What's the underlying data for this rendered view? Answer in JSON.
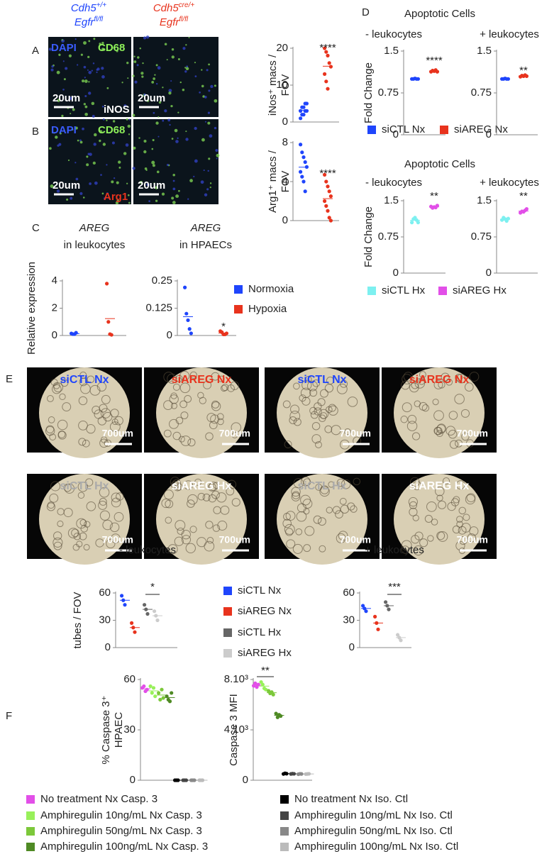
{
  "header": {
    "left": {
      "gene1": "Cdh5",
      "sup1": "+/+",
      "gene2": "Egfr",
      "sup2": "fl/fl"
    },
    "right": {
      "gene1": "Cdh5",
      "sup1": "cre/+",
      "gene2": "Egfr",
      "sup2": "fl/fl"
    }
  },
  "panel_labels": [
    "A",
    "B",
    "C",
    "D",
    "E",
    "F"
  ],
  "micrographs": [
    {
      "stain1": "DAPI",
      "stain2": "CD68",
      "scale_left": "20um",
      "marker": "iNOS",
      "scale_right": "20um"
    },
    {
      "stain1": "DAPI",
      "stain2": "CD68",
      "scale_left": "20um",
      "marker": "Arg1",
      "scale_right": "20um"
    }
  ],
  "wells": [
    {
      "label": "siCTL Nx",
      "scale": "700um"
    },
    {
      "label": "siAREG Nx",
      "scale": "700um"
    },
    {
      "label": "siCTL Nx",
      "scale": "700um"
    },
    {
      "label": "siAREG Nx",
      "scale": "700um"
    },
    {
      "label": "siCTL Hx",
      "scale": "700um"
    },
    {
      "label": "siAREG Hx",
      "scale": "700um"
    },
    {
      "label": "siCTL Hx",
      "scale": "700um"
    },
    {
      "label": "siAREG Hx",
      "scale": "700um"
    }
  ],
  "group_titles": [
    "Apoptotic Cells",
    "Apoptotic Cells"
  ],
  "legends": [
    {
      "items": [
        {
          "name": "Normoxia",
          "color": "#1f45fc"
        },
        {
          "name": "Hypoxia",
          "color": "#e8331d"
        }
      ]
    },
    {
      "items": [
        {
          "name": "siCTL Nx",
          "color": "#1f45fc"
        },
        {
          "name": "siAREG Nx",
          "color": "#e8331d"
        }
      ]
    },
    {
      "items": [
        {
          "name": "siCTL Hx",
          "color": "#7df0f0"
        },
        {
          "name": "siAREG Hx",
          "color": "#e24fe8"
        }
      ]
    },
    {
      "items": [
        {
          "name": "siCTL Nx",
          "color": "#1f45fc"
        },
        {
          "name": "siAREG Nx",
          "color": "#e8331d"
        },
        {
          "name": "siCTL Hx",
          "color": "#666666"
        },
        {
          "name": "siAREG Hx",
          "color": "#cccccc"
        }
      ]
    },
    {
      "items": [
        {
          "name": "No treatment Nx Casp. 3",
          "color": "#e24fe8"
        },
        {
          "name": "Amphiregulin 10ng/mL Nx Casp. 3",
          "color": "#98f05a"
        },
        {
          "name": "Amphiregulin 50ng/mL Nx Casp. 3",
          "color": "#7cc83a"
        },
        {
          "name": "Amphiregulin 100ng/mL Nx Casp. 3",
          "color": "#4f8a24"
        },
        {
          "name": "No treatment Nx Iso. Ctl",
          "color": "#000000"
        },
        {
          "name": "Amphiregulin 10ng/mL Nx Iso. Ctl",
          "color": "#444444"
        },
        {
          "name": "Amphiregulin 50ng/mL Nx Iso. Ctl",
          "color": "#888888"
        },
        {
          "name": "Amphiregulin 100ng/mL Nx Iso. Ctl",
          "color": "#bbbbbb"
        }
      ]
    }
  ],
  "chart_data": [
    {
      "type": "strip",
      "ylabel": [
        "iNos⁺ macs /",
        "FOV"
      ],
      "ylim": [
        0,
        20
      ],
      "yticks": [
        0,
        10,
        20
      ],
      "significance": "****",
      "series": [
        {
          "color": "#1f45fc",
          "values": [
            1,
            2,
            2,
            3,
            3,
            3,
            4,
            4,
            5,
            5
          ]
        },
        {
          "color": "#e8331d",
          "values": [
            20,
            19,
            18,
            16,
            15,
            13,
            11,
            9
          ]
        }
      ]
    },
    {
      "type": "strip",
      "ylabel": [
        "Arg1⁺ macs /",
        "FOV"
      ],
      "ylim": [
        0,
        8
      ],
      "yticks": [
        0,
        4,
        8
      ],
      "significance": "****",
      "series": [
        {
          "color": "#1f45fc",
          "values": [
            7.8,
            7,
            6.5,
            6,
            5.5,
            5,
            4.5,
            4,
            3
          ]
        },
        {
          "color": "#e8331d",
          "values": [
            4.7,
            4,
            3.5,
            3,
            2.5,
            2,
            1.5,
            1,
            0.3,
            0
          ]
        }
      ]
    },
    {
      "type": "strip",
      "title": [
        "AREG",
        "in leukocytes"
      ],
      "ylabel": [
        "Relative expression"
      ],
      "ylim": [
        0,
        4
      ],
      "yticks": [
        0,
        2,
        4
      ],
      "series": [
        {
          "color": "#1f45fc",
          "values": [
            0.15,
            0.1,
            0.1,
            0.2
          ]
        },
        {
          "color": "#e8331d",
          "values": [
            3.8,
            1,
            0.1,
            0.05
          ]
        }
      ]
    },
    {
      "type": "strip",
      "title": [
        "AREG",
        "in HPAECs"
      ],
      "ylim": [
        0,
        0.25
      ],
      "yticks": [
        0,
        0.125,
        0.25
      ],
      "significance": "*",
      "series": [
        {
          "color": "#1f45fc",
          "values": [
            0.22,
            0.1,
            0.07,
            0.03,
            0.01
          ]
        },
        {
          "color": "#e8331d",
          "values": [
            0.02,
            0.015,
            0.005,
            0.005,
            0.01
          ]
        }
      ]
    },
    {
      "type": "strip",
      "title": [
        "- leukocytes"
      ],
      "ylabel": [
        "Fold Change"
      ],
      "ylim": [
        0,
        1.5
      ],
      "yticks": [
        0,
        0.75,
        1.5
      ],
      "significance": "****",
      "series": [
        {
          "color": "#1f45fc",
          "values": [
            1,
            1,
            1.01,
            1,
            1
          ]
        },
        {
          "color": "#e8331d",
          "values": [
            1.13,
            1.15,
            1.14,
            1.16,
            1.13
          ]
        }
      ]
    },
    {
      "type": "strip",
      "title": [
        "+ leukocytes"
      ],
      "ylim": [
        0,
        1.5
      ],
      "yticks": [
        0,
        0.75,
        1.5
      ],
      "significance": "**",
      "series": [
        {
          "color": "#1f45fc",
          "values": [
            1,
            1,
            1.01,
            1,
            1
          ]
        },
        {
          "color": "#e8331d",
          "values": [
            1.04,
            1.06,
            1.05,
            1.07,
            1.05
          ]
        }
      ]
    },
    {
      "type": "strip",
      "title": [
        "- leukocytes"
      ],
      "ylabel": [
        "Fold Change"
      ],
      "ylim": [
        0,
        1.5
      ],
      "yticks": [
        0,
        0.75,
        1.5
      ],
      "significance": "**",
      "series": [
        {
          "color": "#7df0f0",
          "values": [
            1.05,
            1.12,
            1.15,
            1.1,
            1.05
          ]
        },
        {
          "color": "#e24fe8",
          "values": [
            1.38,
            1.35,
            1.37,
            1.36,
            1.4
          ]
        }
      ]
    },
    {
      "type": "strip",
      "title": [
        "+ leukocytes"
      ],
      "ylim": [
        0,
        1.5
      ],
      "yticks": [
        0,
        0.75,
        1.5
      ],
      "significance": "**",
      "series": [
        {
          "color": "#7df0f0",
          "values": [
            1.1,
            1.15,
            1.12,
            1.08,
            1.13
          ]
        },
        {
          "color": "#e24fe8",
          "values": [
            1.25,
            1.28,
            1.27,
            1.3,
            1.33
          ]
        }
      ]
    },
    {
      "type": "strip",
      "title": [
        "- leukocytes"
      ],
      "ylabel": [
        "tubes / FOV"
      ],
      "ylim": [
        0,
        60
      ],
      "yticks": [
        0,
        30,
        60
      ],
      "significance": "*",
      "series": [
        {
          "color": "#1f45fc",
          "values": [
            57,
            52,
            47
          ]
        },
        {
          "color": "#e8331d",
          "values": [
            27,
            22,
            17
          ]
        },
        {
          "color": "#666666",
          "values": [
            47,
            42,
            37
          ]
        },
        {
          "color": "#cccccc",
          "values": [
            40,
            35,
            30
          ]
        }
      ]
    },
    {
      "type": "strip",
      "title": [
        "+ leukocytes"
      ],
      "ylim": [
        0,
        60
      ],
      "yticks": [
        0,
        30,
        60
      ],
      "significance": "***",
      "series": [
        {
          "color": "#1f45fc",
          "values": [
            46,
            43,
            40
          ]
        },
        {
          "color": "#e8331d",
          "values": [
            34,
            27,
            20
          ]
        },
        {
          "color": "#666666",
          "values": [
            50,
            46,
            42
          ]
        },
        {
          "color": "#cccccc",
          "values": [
            14,
            11,
            8
          ]
        }
      ]
    },
    {
      "type": "strip",
      "ylabel": [
        "% Caspase 3⁺",
        "HPAEC"
      ],
      "ylim": [
        0,
        60
      ],
      "yticks": [
        0,
        30,
        60
      ],
      "series": [
        {
          "color": "#e24fe8",
          "values": [
            55,
            56,
            53,
            54
          ]
        },
        {
          "color": "#98f05a",
          "values": [
            56,
            52,
            55,
            50
          ]
        },
        {
          "color": "#7cc83a",
          "values": [
            52,
            48,
            54,
            49
          ]
        },
        {
          "color": "#4f8a24",
          "values": [
            50,
            48,
            47,
            52
          ]
        },
        {
          "color": "#000000",
          "values": [
            0,
            0,
            0
          ]
        },
        {
          "color": "#444444",
          "values": [
            0,
            0,
            0
          ]
        },
        {
          "color": "#888888",
          "values": [
            0,
            0,
            0
          ]
        },
        {
          "color": "#bbbbbb",
          "values": [
            0,
            0,
            0
          ]
        }
      ]
    },
    {
      "type": "strip",
      "ylabel": [
        "Caspase 3 MFI"
      ],
      "ylim": [
        0,
        8000
      ],
      "yticks": [
        0,
        {
          "value": 4000,
          "label": "4.10³"
        },
        {
          "value": 8000,
          "label": "8.10³"
        }
      ],
      "significance": "**",
      "series": [
        {
          "color": "#e24fe8",
          "values": [
            7500,
            7700,
            7400,
            7600
          ]
        },
        {
          "color": "#98f05a",
          "values": [
            7800,
            7600,
            7300,
            7200
          ]
        },
        {
          "color": "#7cc83a",
          "values": [
            7100,
            6900,
            7000,
            6800
          ]
        },
        {
          "color": "#4f8a24",
          "values": [
            5300,
            5000,
            5200,
            5100
          ]
        },
        {
          "color": "#000000",
          "values": [
            500,
            550,
            520
          ]
        },
        {
          "color": "#444444",
          "values": [
            500,
            520,
            510
          ]
        },
        {
          "color": "#888888",
          "values": [
            480,
            510,
            500
          ]
        },
        {
          "color": "#bbbbbb",
          "values": [
            490,
            500,
            510
          ]
        }
      ]
    }
  ]
}
